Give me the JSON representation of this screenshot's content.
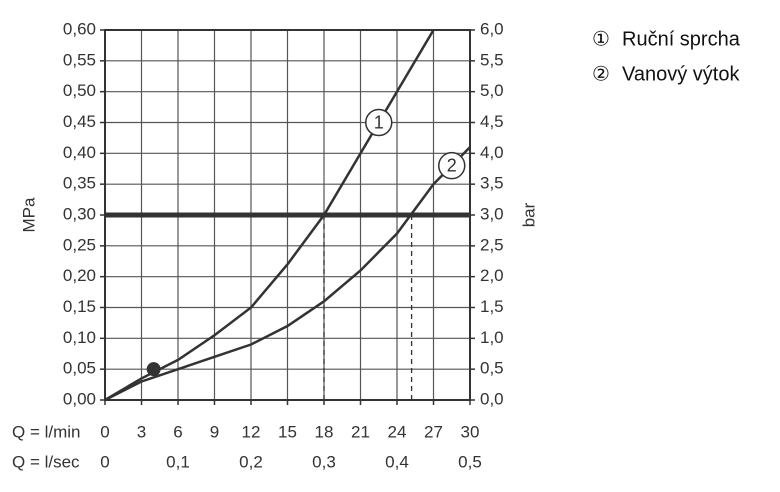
{
  "chart_data": {
    "type": "line",
    "x_label": "Q = l/min",
    "x2_label": "Q = l/sec",
    "y_label": "MPa",
    "y2_label": "bar",
    "xlim": [
      0,
      30
    ],
    "xticks": [
      0,
      3,
      6,
      9,
      12,
      15,
      18,
      21,
      24,
      27,
      30
    ],
    "x2lim": [
      0,
      0.5
    ],
    "x2ticks": [
      0,
      {
        "value": 0.1,
        "label": "0,1"
      },
      {
        "value": 0.2,
        "label": "0,2"
      },
      {
        "value": 0.3,
        "label": "0,3"
      },
      {
        "value": 0.4,
        "label": "0,4"
      },
      {
        "value": 0.5,
        "label": "0,5"
      }
    ],
    "ylim": [
      0,
      0.6
    ],
    "yticks": [
      {
        "value": 0,
        "label": "0,00"
      },
      {
        "value": 0.05,
        "label": "0,05"
      },
      {
        "value": 0.1,
        "label": "0,10"
      },
      {
        "value": 0.15,
        "label": "0,15"
      },
      {
        "value": 0.2,
        "label": "0,20"
      },
      {
        "value": 0.25,
        "label": "0,25"
      },
      {
        "value": 0.3,
        "label": "0,30"
      },
      {
        "value": 0.35,
        "label": "0,35"
      },
      {
        "value": 0.4,
        "label": "0,40"
      },
      {
        "value": 0.45,
        "label": "0,45"
      },
      {
        "value": 0.5,
        "label": "0,50"
      },
      {
        "value": 0.55,
        "label": "0,55"
      },
      {
        "value": 0.6,
        "label": "0,60"
      }
    ],
    "y2lim": [
      0,
      6
    ],
    "y2ticks": [
      {
        "value": 0,
        "label": "0,0"
      },
      {
        "value": 0.5,
        "label": "0,5"
      },
      {
        "value": 1,
        "label": "1,0"
      },
      {
        "value": 1.5,
        "label": "1,5"
      },
      {
        "value": 2,
        "label": "2,0"
      },
      {
        "value": 2.5,
        "label": "2,5"
      },
      {
        "value": 3,
        "label": "3,0"
      },
      {
        "value": 3.5,
        "label": "3,5"
      },
      {
        "value": 4,
        "label": "4,0"
      },
      {
        "value": 4.5,
        "label": "4,5"
      },
      {
        "value": 5,
        "label": "5,0"
      },
      {
        "value": 5.5,
        "label": "5,5"
      },
      {
        "value": 6,
        "label": "6,0"
      }
    ],
    "grid": true,
    "color": "#333333",
    "reference_line": 0.3,
    "drop_lines": [
      18,
      25.2
    ],
    "point": {
      "x": 4,
      "y": 0.05
    },
    "series": [
      {
        "name": "Ruční sprcha",
        "marker": "①",
        "label": "1",
        "x": [
          0,
          3,
          6,
          9,
          12,
          15,
          18,
          21,
          24,
          27
        ],
        "values": [
          0,
          0.035,
          0.065,
          0.105,
          0.15,
          0.22,
          0.3,
          0.4,
          0.5,
          0.6
        ]
      },
      {
        "name": "Vanový výtok",
        "marker": "②",
        "label": "2",
        "x": [
          0,
          3,
          6,
          9,
          12,
          15,
          18,
          21,
          24,
          27,
          30
        ],
        "values": [
          0,
          0.03,
          0.05,
          0.07,
          0.09,
          0.12,
          0.16,
          0.21,
          0.27,
          0.35,
          0.41
        ]
      }
    ]
  }
}
